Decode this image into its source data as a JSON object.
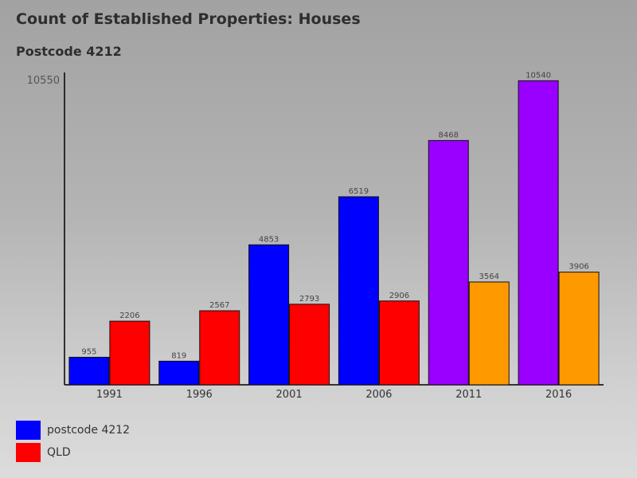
{
  "chart_data": {
    "type": "bar",
    "title": "Count of Established Properties: Houses",
    "subtitle": "Postcode 4212",
    "categories": [
      "1991",
      "1996",
      "2001",
      "2006",
      "2011",
      "2016"
    ],
    "ymax_label": "10550",
    "ylim": [
      0,
      10550
    ],
    "series": [
      {
        "name": "postcode 4212",
        "values": [
          955,
          819,
          4853,
          6519,
          8468,
          10540
        ],
        "colors": [
          "#0000ff",
          "#0000ff",
          "#0000ff",
          "#0000ff",
          "#9900ff",
          "#9900ff"
        ]
      },
      {
        "name": "QLD",
        "values": [
          2206,
          2567,
          2793,
          2906,
          3564,
          3906
        ],
        "colors": [
          "#ff0000",
          "#ff0000",
          "#ff0000",
          "#ff0000",
          "#ff9900",
          "#ff9900"
        ]
      }
    ],
    "legend": {
      "placement": "bottom-left",
      "items": [
        {
          "label": "postcode 4212",
          "color": "#0000ff"
        },
        {
          "label": "QLD",
          "color": "#ff0000"
        }
      ]
    },
    "grid": false
  }
}
